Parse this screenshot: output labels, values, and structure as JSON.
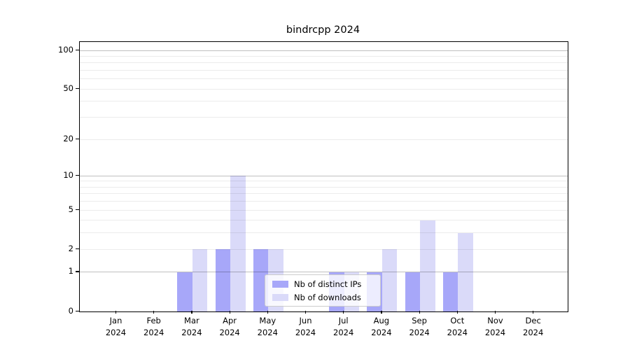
{
  "title": "bindrcpp 2024",
  "colors": {
    "distinct_ips_bar": "#a7a7f9",
    "downloads_bar": "#dadaf9",
    "axis": "#000000",
    "legend_border": "#cccccc"
  },
  "chart_data": {
    "type": "bar",
    "title": "bindrcpp 2024",
    "xlabel": "",
    "ylabel": "",
    "year_label": "2024",
    "months": [
      "Jan",
      "Feb",
      "Mar",
      "Apr",
      "May",
      "Jun",
      "Jul",
      "Aug",
      "Sep",
      "Oct",
      "Nov",
      "Dec"
    ],
    "series": [
      {
        "name": "Nb of distinct IPs",
        "color": "#a7a7f9",
        "values": [
          0,
          0,
          1,
          2,
          2,
          0,
          1,
          1,
          1,
          1,
          0,
          0
        ]
      },
      {
        "name": "Nb of downloads",
        "color": "#dadaf9",
        "values": [
          0,
          0,
          2,
          10,
          2,
          0,
          1,
          2,
          4,
          3,
          0,
          0
        ]
      }
    ],
    "yscale": "log1p",
    "yticks": [
      0,
      1,
      2,
      5,
      10,
      20,
      50,
      100
    ],
    "yticks_major_grid": [
      1,
      10,
      100
    ],
    "yticks_minor_grid": [
      2,
      3,
      4,
      5,
      6,
      7,
      8,
      9,
      20,
      30,
      40,
      50,
      60,
      70,
      80,
      90
    ],
    "ylim": [
      0,
      117
    ],
    "grid": true,
    "legend_position": "lower center"
  }
}
